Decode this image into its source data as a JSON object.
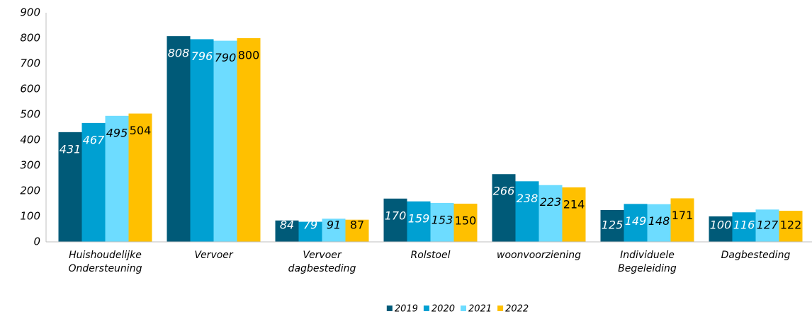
{
  "chart_data": {
    "type": "bar",
    "categories": [
      "Huishoudelijke Ondersteuning",
      "Vervoer",
      "Vervoer dagbesteding",
      "Rolstoel",
      "woonvoorziening",
      "Individuele Begeleiding",
      "Dagbesteding"
    ],
    "series": [
      {
        "name": "2019",
        "color": "#005a78",
        "values": [
          431,
          808,
          84,
          170,
          266,
          125,
          100
        ]
      },
      {
        "name": "2020",
        "color": "#00a0d2",
        "values": [
          467,
          796,
          79,
          159,
          238,
          149,
          116
        ]
      },
      {
        "name": "2021",
        "color": "#6ddcff",
        "values": [
          495,
          790,
          91,
          153,
          223,
          148,
          127
        ]
      },
      {
        "name": "2022",
        "color": "#ffc000",
        "values": [
          504,
          800,
          87,
          150,
          214,
          171,
          122
        ]
      }
    ],
    "ylim": [
      0,
      900
    ],
    "yticks": [
      0,
      100,
      200,
      300,
      400,
      500,
      600,
      700,
      800,
      900
    ],
    "grid": false,
    "legend": "bottom"
  }
}
